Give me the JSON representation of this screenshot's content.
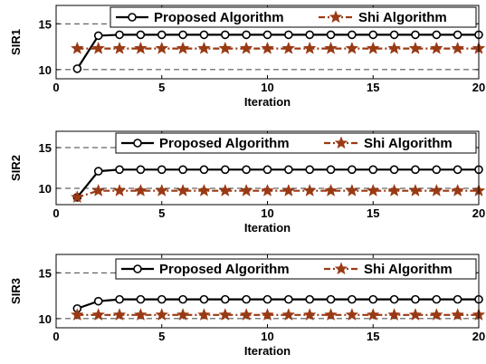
{
  "colors": {
    "proposed": "#000000",
    "shi": "#9a3a14",
    "grid": "#000000",
    "background": "#ffffff"
  },
  "chart_data": [
    {
      "type": "line",
      "xlabel": "Iteration",
      "ylabel": "SIR1",
      "xlim": [
        0,
        20
      ],
      "ylim": [
        9,
        17
      ],
      "xticks": [
        0,
        5,
        10,
        15,
        20
      ],
      "yticks": [
        10,
        15
      ],
      "grid": "horizontal dashed",
      "legend_position": "top",
      "x": [
        1,
        2,
        3,
        4,
        5,
        6,
        7,
        8,
        9,
        10,
        11,
        12,
        13,
        14,
        15,
        16,
        17,
        18,
        19,
        20
      ],
      "series": [
        {
          "name": "Proposed Algorithm",
          "marker": "circle",
          "line": "solid",
          "values": [
            10.1,
            13.7,
            13.8,
            13.8,
            13.8,
            13.8,
            13.8,
            13.8,
            13.8,
            13.8,
            13.8,
            13.8,
            13.8,
            13.8,
            13.8,
            13.8,
            13.8,
            13.8,
            13.8,
            13.8
          ]
        },
        {
          "name": "Shi Algorithm",
          "marker": "star",
          "line": "dash-dot",
          "values": [
            12.3,
            12.3,
            12.3,
            12.3,
            12.3,
            12.3,
            12.3,
            12.3,
            12.3,
            12.3,
            12.3,
            12.3,
            12.3,
            12.3,
            12.3,
            12.3,
            12.3,
            12.3,
            12.3,
            12.3
          ]
        }
      ]
    },
    {
      "type": "line",
      "xlabel": "Iteration",
      "ylabel": "SIR2",
      "xlim": [
        0,
        20
      ],
      "ylim": [
        8,
        17
      ],
      "xticks": [
        0,
        5,
        10,
        15,
        20
      ],
      "yticks": [
        10,
        15
      ],
      "grid": "horizontal dashed",
      "legend_position": "top",
      "x": [
        1,
        2,
        3,
        4,
        5,
        6,
        7,
        8,
        9,
        10,
        11,
        12,
        13,
        14,
        15,
        16,
        17,
        18,
        19,
        20
      ],
      "series": [
        {
          "name": "Proposed Algorithm",
          "marker": "circle",
          "line": "solid",
          "values": [
            8.9,
            12.1,
            12.3,
            12.3,
            12.3,
            12.3,
            12.3,
            12.3,
            12.3,
            12.3,
            12.3,
            12.3,
            12.3,
            12.3,
            12.3,
            12.3,
            12.3,
            12.3,
            12.3,
            12.3
          ]
        },
        {
          "name": "Shi Algorithm",
          "marker": "star",
          "line": "dash-dot",
          "values": [
            8.9,
            9.7,
            9.7,
            9.7,
            9.7,
            9.7,
            9.7,
            9.7,
            9.7,
            9.7,
            9.7,
            9.7,
            9.7,
            9.7,
            9.7,
            9.7,
            9.7,
            9.7,
            9.7,
            9.7
          ]
        }
      ]
    },
    {
      "type": "line",
      "xlabel": "Iteration",
      "ylabel": "SIR3",
      "xlim": [
        0,
        20
      ],
      "ylim": [
        9,
        17
      ],
      "xticks": [
        0,
        5,
        10,
        15,
        20
      ],
      "yticks": [
        10,
        15
      ],
      "grid": "horizontal dashed",
      "legend_position": "top",
      "x": [
        1,
        2,
        3,
        4,
        5,
        6,
        7,
        8,
        9,
        10,
        11,
        12,
        13,
        14,
        15,
        16,
        17,
        18,
        19,
        20
      ],
      "series": [
        {
          "name": "Proposed Algorithm",
          "marker": "circle",
          "line": "solid",
          "values": [
            11.1,
            11.9,
            12.1,
            12.1,
            12.1,
            12.1,
            12.1,
            12.1,
            12.1,
            12.1,
            12.1,
            12.1,
            12.1,
            12.1,
            12.1,
            12.1,
            12.1,
            12.1,
            12.1,
            12.1
          ]
        },
        {
          "name": "Shi Algorithm",
          "marker": "star",
          "line": "dash-dot",
          "values": [
            10.4,
            10.4,
            10.4,
            10.4,
            10.4,
            10.4,
            10.4,
            10.4,
            10.4,
            10.4,
            10.4,
            10.4,
            10.4,
            10.4,
            10.4,
            10.4,
            10.4,
            10.4,
            10.4,
            10.4
          ]
        }
      ]
    }
  ]
}
